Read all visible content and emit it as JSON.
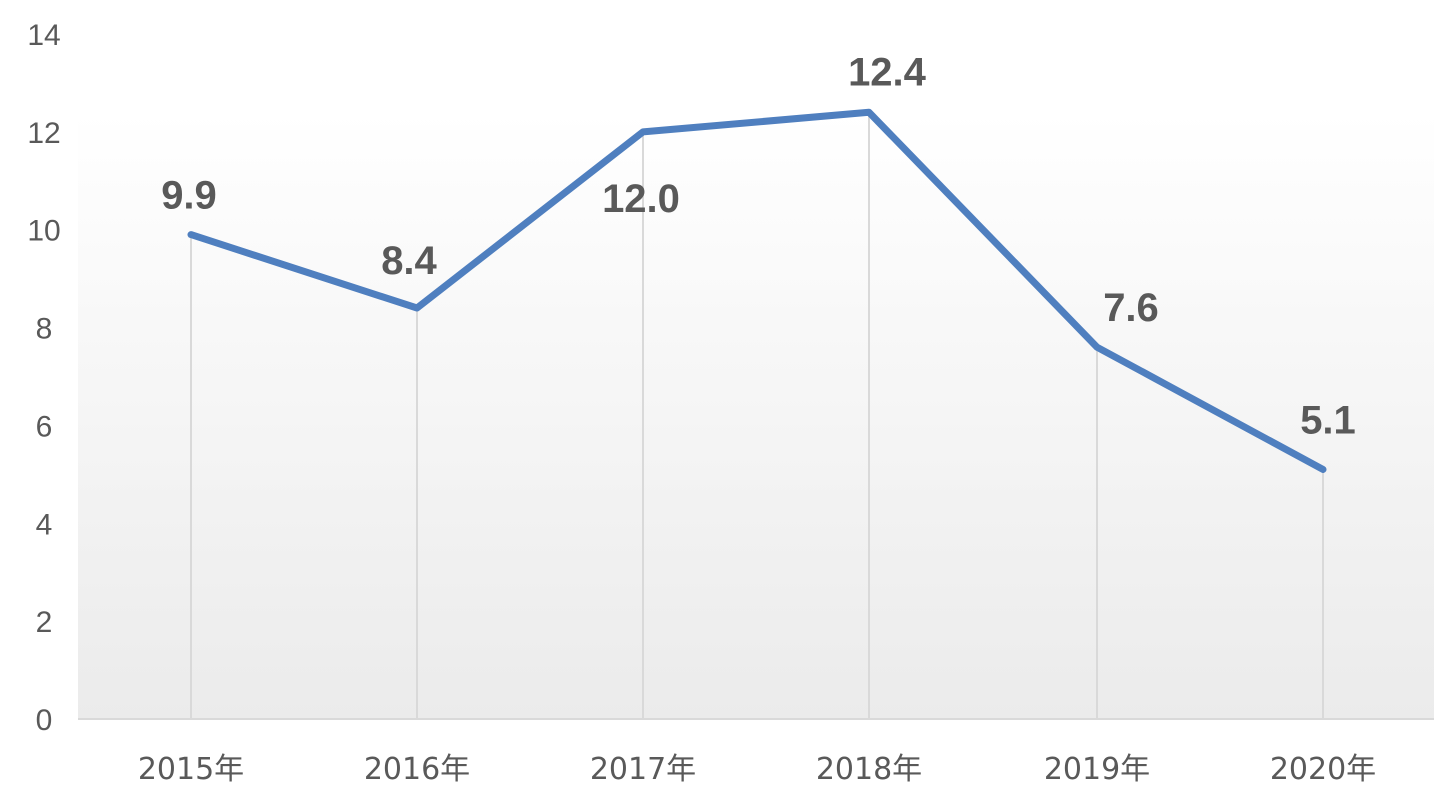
{
  "chart_data": {
    "type": "line",
    "categories": [
      "2015年",
      "2016年",
      "2017年",
      "2018年",
      "2019年",
      "2020年"
    ],
    "series": [
      {
        "values": [
          9.9,
          8.4,
          12.0,
          12.4,
          7.6,
          5.1
        ],
        "labels": [
          "9.9",
          "8.4",
          "12.0",
          "12.4",
          "7.6",
          "5.1"
        ],
        "color": "#4f7fbf"
      }
    ],
    "ylim": [
      0,
      14
    ],
    "yticks": [
      "0",
      "2",
      "4",
      "6",
      "8",
      "10",
      "12",
      "14"
    ],
    "grid": "vertical drop lines",
    "legend": "none",
    "title": "",
    "xlabel": "",
    "ylabel": ""
  }
}
